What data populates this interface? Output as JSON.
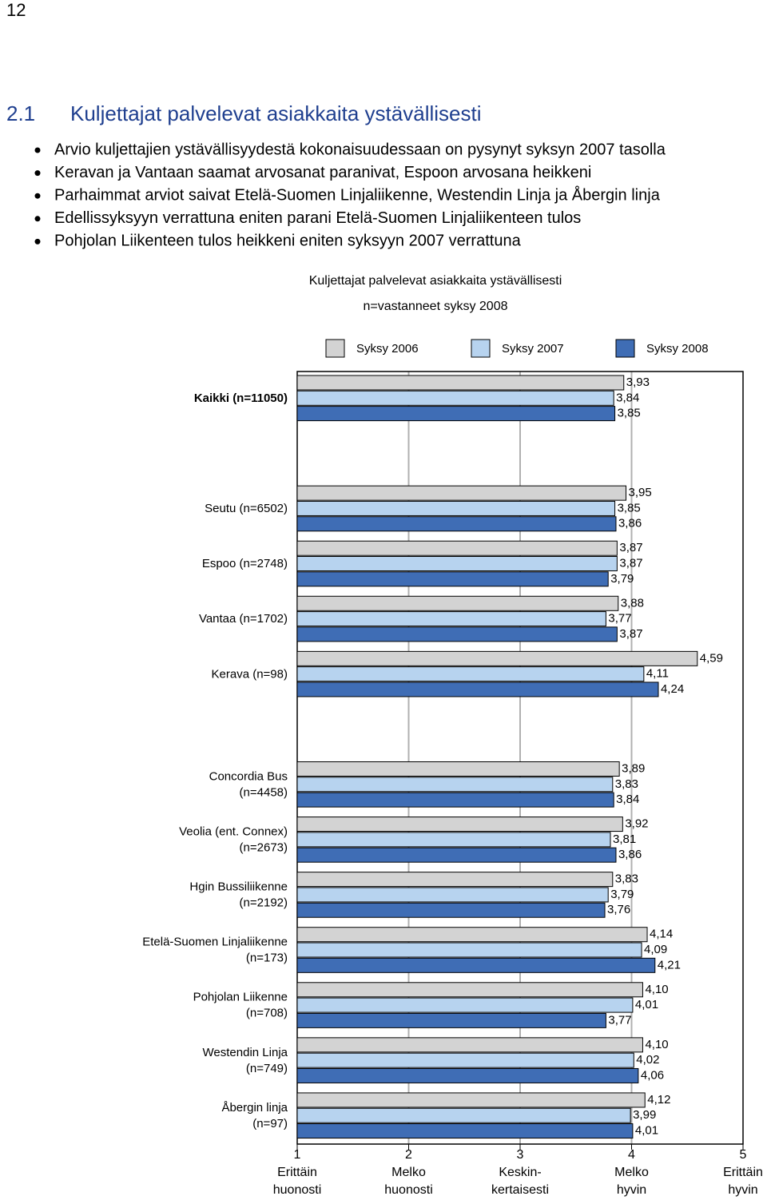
{
  "page_number": "12",
  "heading": {
    "number": "2.1",
    "title": "Kuljettajat palvelevat asiakkaita ystävällisesti"
  },
  "bullets": [
    "Arvio kuljettajien ystävällisyydestä kokonaisuudessaan on pysynyt syksyn 2007 tasolla",
    "Keravan ja Vantaan saamat arvosanat paranivat, Espoon arvosana heikkeni",
    "Parhaimmat arviot saivat Etelä-Suomen Linjaliikenne, Westendin Linja ja Åbergin linja",
    "Edellissyksyyn verrattuna eniten parani Etelä-Suomen Linjaliikenteen tulos",
    "Pohjolan Liikenteen tulos heikkeni eniten syksyyn 2007 verrattuna"
  ],
  "chart_data": {
    "type": "hbar",
    "title": "Kuljettajat palvelevat asiakkaita ystävällisesti",
    "subtitle": "n=vastanneet syksy 2008",
    "categories": [
      [
        "Kaikki (n=11050)"
      ],
      null,
      [
        "Seutu (n=6502)"
      ],
      [
        "Espoo (n=2748)"
      ],
      [
        "Vantaa (n=1702)"
      ],
      [
        "Kerava (n=98)"
      ],
      null,
      [
        "Concordia Bus",
        "(n=4458)"
      ],
      [
        "Veolia (ent. Connex)",
        "(n=2673)"
      ],
      [
        "Hgin Bussiliikenne",
        "(n=2192)"
      ],
      [
        "Etelä-Suomen Linjaliikenne",
        "(n=173)"
      ],
      [
        "Pohjolan Liikenne",
        "(n=708)"
      ],
      [
        "Westendin Linja",
        "(n=749)"
      ],
      [
        "Åbergin linja",
        "(n=97)"
      ]
    ],
    "series": [
      {
        "name": "Syksy 2006",
        "color": "#d3d3d3",
        "values": [
          3.93,
          null,
          3.95,
          3.87,
          3.88,
          4.59,
          null,
          3.89,
          3.92,
          3.83,
          4.14,
          4.1,
          4.1,
          4.12
        ],
        "value_labels": [
          "3,93",
          null,
          "3,95",
          "3,87",
          "3,88",
          "4,59",
          null,
          "3,89",
          "3,92",
          "3,83",
          "4,14",
          "4,10",
          "4,10",
          "4,12"
        ]
      },
      {
        "name": "Syksy 2007",
        "color": "#b7d3ef",
        "values": [
          3.84,
          null,
          3.85,
          3.87,
          3.77,
          4.11,
          null,
          3.83,
          3.81,
          3.79,
          4.09,
          4.01,
          4.02,
          3.99
        ],
        "value_labels": [
          "3,84",
          null,
          "3,85",
          "3,87",
          "3,77",
          "4,11",
          null,
          "3,83",
          "3,81",
          "3,79",
          "4,09",
          "4,01",
          "4,02",
          "3,99"
        ]
      },
      {
        "name": "Syksy 2008",
        "color": "#3f6db5",
        "values": [
          3.85,
          null,
          3.86,
          3.79,
          3.87,
          4.24,
          null,
          3.84,
          3.86,
          3.76,
          4.21,
          3.77,
          4.06,
          4.01
        ],
        "value_labels": [
          "3,85",
          null,
          "3,86",
          "3,79",
          "3,87",
          "4,24",
          null,
          "3,84",
          "3,86",
          "3,76",
          "4,21",
          "3,77",
          "4,06",
          "4,01"
        ]
      }
    ],
    "xlim": [
      1,
      5
    ],
    "xticks": [
      1,
      2,
      3,
      4,
      5
    ],
    "xtick_descriptions": [
      [
        "Erittäin",
        "huonosti"
      ],
      [
        "Melko",
        "huonosti"
      ],
      [
        "Keskin-",
        "kertaisesti"
      ],
      [
        "Melko",
        "hyvin"
      ],
      [
        "Erittäin",
        "hyvin"
      ]
    ],
    "grid": true
  }
}
